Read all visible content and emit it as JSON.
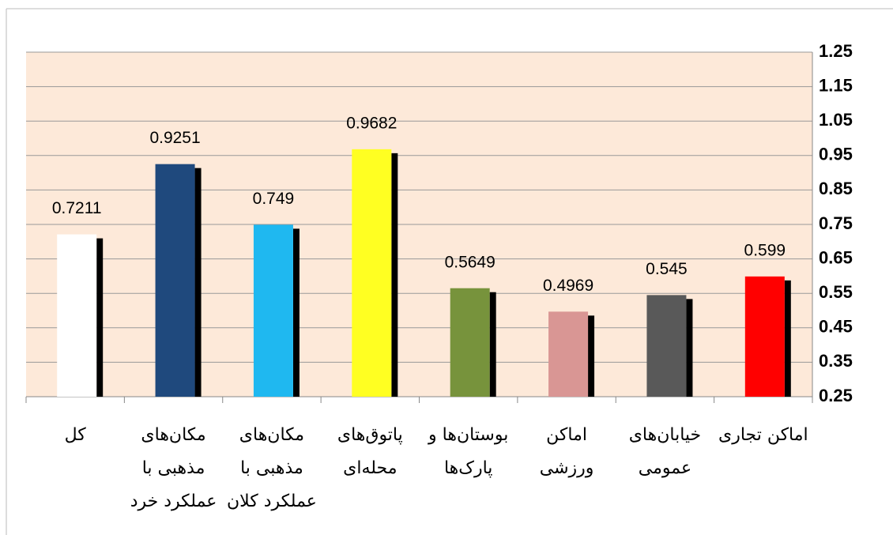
{
  "chart_data": {
    "type": "bar",
    "categories": [
      "کل",
      "مکان‌های مذهبی با عملکرد خرد",
      "مکان‌های مذهبی با عملکرد کلان",
      "پاتوق‌های محله‌ای",
      "بوستان‌ها و پارک‌ها",
      "اماکن ورزشی",
      "خیابان‌های عمومی",
      "اماکن تجاری"
    ],
    "values": [
      0.7211,
      0.9251,
      0.749,
      0.9682,
      0.5649,
      0.4969,
      0.545,
      0.599
    ],
    "colors": [
      "#ffffff",
      "#1f497d",
      "#1fb8f0",
      "#ffff22",
      "#77933c",
      "#d99694",
      "#595959",
      "#ff0000"
    ],
    "ylim": [
      0.25,
      1.25
    ],
    "yticks": [
      0.25,
      0.35,
      0.45,
      0.55,
      0.65,
      0.75,
      0.85,
      0.95,
      1.05,
      1.15,
      1.25
    ],
    "grid": true,
    "y_axis_side": "right"
  }
}
